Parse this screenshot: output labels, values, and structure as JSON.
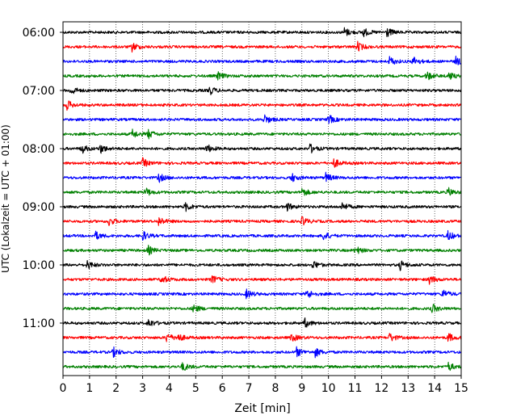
{
  "chart_data": {
    "type": "line",
    "title": "",
    "xlabel": "Zeit  [min]",
    "ylabel": "UTC (Lokalzeit = UTC + 01:00)",
    "xlim": [
      0,
      15
    ],
    "x_ticks": [
      "0",
      "1",
      "2",
      "3",
      "4",
      "5",
      "6",
      "7",
      "8",
      "9",
      "10",
      "11",
      "12",
      "13",
      "14",
      "15"
    ],
    "y_tick_labels": [
      "06:00",
      "07:00",
      "08:00",
      "09:00",
      "10:00",
      "11:00"
    ],
    "trace_interval_minutes": 15,
    "start_time": "06:00",
    "trace_count": 24,
    "grid": "vertical dotted",
    "colors": [
      "#000000",
      "#ff0000",
      "#0000ff",
      "#008000"
    ],
    "series": [
      {
        "start": "06:00",
        "events_min": [
          10.6,
          11.3,
          12.2
        ]
      },
      {
        "start": "06:15",
        "events_min": [
          2.6,
          11.1
        ]
      },
      {
        "start": "06:30",
        "events_min": [
          12.3,
          13.2,
          14.8
        ]
      },
      {
        "start": "06:45",
        "events_min": [
          5.8,
          13.7,
          14.5
        ]
      },
      {
        "start": "07:00",
        "events_min": [
          0.3,
          5.5
        ]
      },
      {
        "start": "07:15",
        "events_min": [
          0.15
        ]
      },
      {
        "start": "07:30",
        "events_min": [
          7.6,
          10.0
        ]
      },
      {
        "start": "07:45",
        "events_min": [
          2.6,
          3.2
        ]
      },
      {
        "start": "08:00",
        "events_min": [
          0.7,
          1.4,
          5.4,
          9.3
        ]
      },
      {
        "start": "08:15",
        "events_min": [
          3.0,
          10.2
        ]
      },
      {
        "start": "08:30",
        "events_min": [
          3.6,
          8.6,
          9.9
        ]
      },
      {
        "start": "08:45",
        "events_min": [
          3.1,
          9.0,
          14.5
        ]
      },
      {
        "start": "09:00",
        "events_min": [
          4.6,
          8.4,
          10.5
        ]
      },
      {
        "start": "09:15",
        "events_min": [
          1.7,
          3.6,
          9.0
        ]
      },
      {
        "start": "09:30",
        "events_min": [
          1.2,
          3.0,
          9.8,
          14.5
        ]
      },
      {
        "start": "09:45",
        "events_min": [
          3.2,
          11.0
        ]
      },
      {
        "start": "10:00",
        "events_min": [
          0.9,
          9.4,
          12.7
        ]
      },
      {
        "start": "10:15",
        "events_min": [
          3.7,
          5.6,
          13.8
        ]
      },
      {
        "start": "10:30",
        "events_min": [
          6.9,
          9.2,
          14.3
        ]
      },
      {
        "start": "10:45",
        "events_min": [
          4.9,
          13.9
        ]
      },
      {
        "start": "11:00",
        "events_min": [
          3.2,
          9.1
        ]
      },
      {
        "start": "11:15",
        "events_min": [
          3.9,
          4.3,
          8.6,
          12.3,
          14.5
        ]
      },
      {
        "start": "11:30",
        "events_min": [
          1.9,
          8.8,
          9.5
        ]
      },
      {
        "start": "11:45",
        "events_min": [
          4.5,
          14.5
        ]
      }
    ]
  }
}
